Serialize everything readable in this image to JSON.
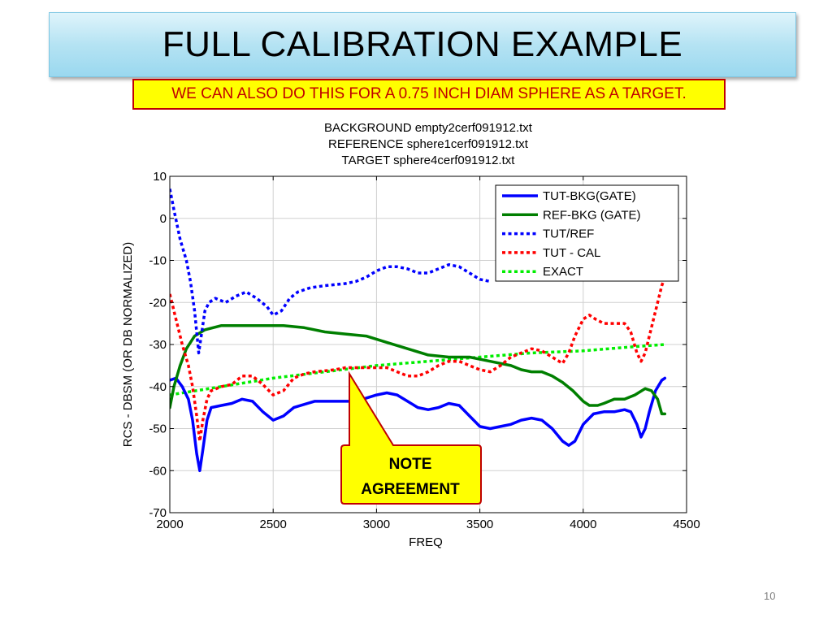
{
  "slide": {
    "title": "FULL CALIBRATION EXAMPLE",
    "subtitle": "WE CAN ALSO DO THIS FOR A 0.75 INCH DIAM SPHERE AS A TARGET.",
    "callout": [
      "NOTE",
      "AGREEMENT"
    ],
    "page_number": "10"
  },
  "chart_data": {
    "type": "line",
    "title_lines": [
      "BACKGROUND empty2cerf091912.txt",
      "REFERENCE sphere1cerf091912.txt",
      "TARGET sphere4cerf091912.txt"
    ],
    "xlabel": "FREQ",
    "ylabel": "RCS - DBSM (OR DB NORMALIZED)",
    "xlim": [
      2000,
      4500
    ],
    "ylim": [
      -70,
      10
    ],
    "xticks": [
      2000,
      2500,
      3000,
      3500,
      4000,
      4500
    ],
    "yticks": [
      10,
      0,
      -10,
      -20,
      -30,
      -40,
      -50,
      -60,
      -70
    ],
    "grid": true,
    "legend_position": "top-right",
    "series": [
      {
        "name": "TUT-BKG(GATE)",
        "color": "#0000ff",
        "style": "solid",
        "points": [
          [
            2000,
            -38.5
          ],
          [
            2030,
            -38
          ],
          [
            2060,
            -40
          ],
          [
            2090,
            -43
          ],
          [
            2110,
            -48
          ],
          [
            2130,
            -56
          ],
          [
            2145,
            -60
          ],
          [
            2160,
            -55
          ],
          [
            2180,
            -48
          ],
          [
            2200,
            -45
          ],
          [
            2250,
            -44.5
          ],
          [
            2300,
            -44
          ],
          [
            2350,
            -43
          ],
          [
            2400,
            -43.5
          ],
          [
            2450,
            -46
          ],
          [
            2500,
            -48
          ],
          [
            2550,
            -47
          ],
          [
            2600,
            -45
          ],
          [
            2700,
            -43.5
          ],
          [
            2800,
            -43.5
          ],
          [
            2900,
            -43.5
          ],
          [
            3000,
            -42
          ],
          [
            3050,
            -41.5
          ],
          [
            3100,
            -42
          ],
          [
            3150,
            -43.5
          ],
          [
            3200,
            -45
          ],
          [
            3250,
            -45.5
          ],
          [
            3300,
            -45
          ],
          [
            3350,
            -44
          ],
          [
            3400,
            -44.5
          ],
          [
            3450,
            -47
          ],
          [
            3500,
            -49.5
          ],
          [
            3550,
            -50
          ],
          [
            3600,
            -49.5
          ],
          [
            3650,
            -49
          ],
          [
            3700,
            -48
          ],
          [
            3750,
            -47.5
          ],
          [
            3800,
            -48
          ],
          [
            3850,
            -50
          ],
          [
            3900,
            -53
          ],
          [
            3930,
            -54
          ],
          [
            3960,
            -53
          ],
          [
            4000,
            -49
          ],
          [
            4050,
            -46.5
          ],
          [
            4100,
            -46
          ],
          [
            4150,
            -46
          ],
          [
            4200,
            -45.5
          ],
          [
            4230,
            -46
          ],
          [
            4260,
            -49
          ],
          [
            4280,
            -52
          ],
          [
            4300,
            -50
          ],
          [
            4320,
            -46
          ],
          [
            4350,
            -41
          ],
          [
            4380,
            -38.5
          ],
          [
            4395,
            -38
          ]
        ]
      },
      {
        "name": "REF-BKG (GATE)",
        "color": "#007f00",
        "style": "solid",
        "points": [
          [
            2000,
            -45
          ],
          [
            2020,
            -40
          ],
          [
            2050,
            -35
          ],
          [
            2080,
            -31
          ],
          [
            2120,
            -28
          ],
          [
            2170,
            -26.5
          ],
          [
            2250,
            -25.5
          ],
          [
            2350,
            -25.5
          ],
          [
            2450,
            -25.5
          ],
          [
            2550,
            -25.5
          ],
          [
            2650,
            -26
          ],
          [
            2750,
            -27
          ],
          [
            2850,
            -27.5
          ],
          [
            2950,
            -28
          ],
          [
            3050,
            -29.5
          ],
          [
            3150,
            -31
          ],
          [
            3250,
            -32.5
          ],
          [
            3350,
            -33
          ],
          [
            3450,
            -33
          ],
          [
            3550,
            -34
          ],
          [
            3650,
            -35
          ],
          [
            3700,
            -36
          ],
          [
            3750,
            -36.5
          ],
          [
            3800,
            -36.5
          ],
          [
            3850,
            -37.5
          ],
          [
            3900,
            -39
          ],
          [
            3950,
            -41
          ],
          [
            4000,
            -43.5
          ],
          [
            4030,
            -44.5
          ],
          [
            4070,
            -44.5
          ],
          [
            4100,
            -44
          ],
          [
            4150,
            -43
          ],
          [
            4200,
            -43
          ],
          [
            4250,
            -42
          ],
          [
            4300,
            -40.5
          ],
          [
            4330,
            -41
          ],
          [
            4360,
            -43
          ],
          [
            4380,
            -46.5
          ],
          [
            4395,
            -46.5
          ]
        ]
      },
      {
        "name": "TUT/REF",
        "color": "#0000ff",
        "style": "dotted",
        "points": [
          [
            2000,
            7
          ],
          [
            2020,
            2
          ],
          [
            2050,
            -5
          ],
          [
            2080,
            -10
          ],
          [
            2100,
            -15
          ],
          [
            2120,
            -22
          ],
          [
            2140,
            -32
          ],
          [
            2155,
            -27
          ],
          [
            2170,
            -22
          ],
          [
            2190,
            -20
          ],
          [
            2220,
            -19
          ],
          [
            2270,
            -20
          ],
          [
            2320,
            -18.5
          ],
          [
            2370,
            -17.5
          ],
          [
            2420,
            -19
          ],
          [
            2470,
            -21
          ],
          [
            2500,
            -23
          ],
          [
            2540,
            -22
          ],
          [
            2580,
            -19
          ],
          [
            2620,
            -17.5
          ],
          [
            2680,
            -16.5
          ],
          [
            2750,
            -16
          ],
          [
            2850,
            -15.5
          ],
          [
            2900,
            -15
          ],
          [
            2950,
            -14
          ],
          [
            3000,
            -12.5
          ],
          [
            3050,
            -11.5
          ],
          [
            3100,
            -11.5
          ],
          [
            3150,
            -12
          ],
          [
            3200,
            -13
          ],
          [
            3250,
            -13
          ],
          [
            3300,
            -12
          ],
          [
            3350,
            -11
          ],
          [
            3400,
            -11.5
          ],
          [
            3450,
            -13
          ],
          [
            3500,
            -14.5
          ],
          [
            3550,
            -15
          ]
        ]
      },
      {
        "name": "TUT - CAL",
        "color": "#ff0000",
        "style": "dotted",
        "points": [
          [
            2000,
            -18
          ],
          [
            2030,
            -24
          ],
          [
            2060,
            -30
          ],
          [
            2090,
            -35
          ],
          [
            2110,
            -40
          ],
          [
            2130,
            -47
          ],
          [
            2145,
            -53
          ],
          [
            2160,
            -48
          ],
          [
            2180,
            -43
          ],
          [
            2200,
            -41
          ],
          [
            2250,
            -40
          ],
          [
            2300,
            -39.5
          ],
          [
            2350,
            -37.5
          ],
          [
            2400,
            -37.5
          ],
          [
            2450,
            -39.5
          ],
          [
            2500,
            -42
          ],
          [
            2550,
            -41
          ],
          [
            2600,
            -38
          ],
          [
            2650,
            -37
          ],
          [
            2700,
            -36.5
          ],
          [
            2800,
            -36
          ],
          [
            2850,
            -35.5
          ],
          [
            2950,
            -35.5
          ],
          [
            3000,
            -35.5
          ],
          [
            3050,
            -35.5
          ],
          [
            3100,
            -36.5
          ],
          [
            3150,
            -37.5
          ],
          [
            3200,
            -37.5
          ],
          [
            3250,
            -36.5
          ],
          [
            3300,
            -35
          ],
          [
            3350,
            -34
          ],
          [
            3400,
            -34
          ],
          [
            3450,
            -35
          ],
          [
            3500,
            -36
          ],
          [
            3550,
            -36.5
          ],
          [
            3600,
            -35
          ],
          [
            3650,
            -33
          ],
          [
            3700,
            -32
          ],
          [
            3750,
            -31
          ],
          [
            3800,
            -31.5
          ],
          [
            3850,
            -33
          ],
          [
            3900,
            -34.5
          ],
          [
            3930,
            -32
          ],
          [
            3960,
            -28
          ],
          [
            4000,
            -24
          ],
          [
            4030,
            -23
          ],
          [
            4060,
            -24
          ],
          [
            4100,
            -25
          ],
          [
            4150,
            -25
          ],
          [
            4200,
            -25
          ],
          [
            4230,
            -27
          ],
          [
            4260,
            -32
          ],
          [
            4280,
            -34
          ],
          [
            4300,
            -32
          ],
          [
            4320,
            -28
          ],
          [
            4340,
            -24
          ],
          [
            4360,
            -20
          ],
          [
            4380,
            -16
          ],
          [
            4395,
            -14
          ]
        ]
      },
      {
        "name": "EXACT",
        "color": "#00ee00",
        "style": "dotted",
        "points": [
          [
            2000,
            -42
          ],
          [
            2250,
            -40
          ],
          [
            2500,
            -38
          ],
          [
            2750,
            -36.5
          ],
          [
            3000,
            -35
          ],
          [
            3250,
            -34
          ],
          [
            3500,
            -33
          ],
          [
            3750,
            -32
          ],
          [
            4000,
            -31.5
          ],
          [
            4250,
            -30.5
          ],
          [
            4395,
            -30
          ]
        ]
      }
    ]
  }
}
